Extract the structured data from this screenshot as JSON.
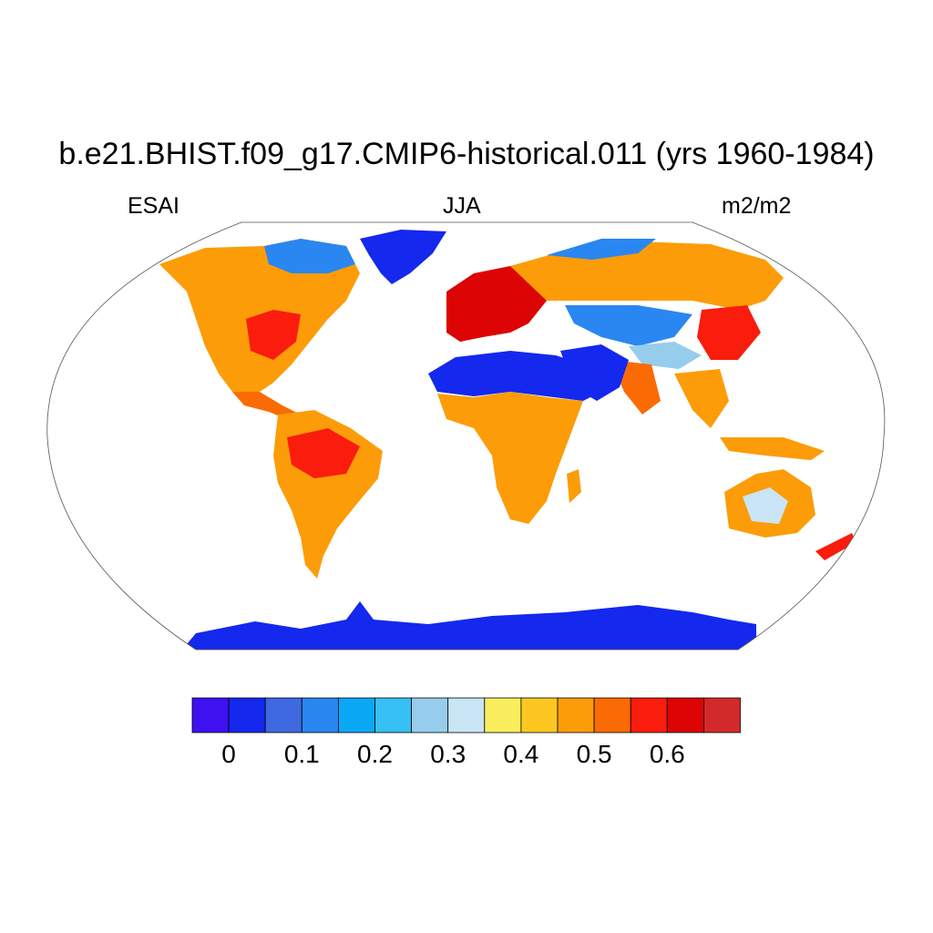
{
  "title": "b.e21.BHIST.f09_g17.CMIP6-historical.011 (yrs 1960-1984)",
  "subtitle_left": "ESAI",
  "subtitle_center": "JJA",
  "subtitle_right": "m2/m2",
  "colorbar": {
    "colors": [
      "#3f10f0",
      "#1428ee",
      "#3f69e0",
      "#2a86f0",
      "#0aa8f5",
      "#36c0f4",
      "#96cdec",
      "#c9e5f6",
      "#fbee5e",
      "#fdc721",
      "#fc9c08",
      "#fb6b05",
      "#fa1c0c",
      "#dc0404",
      "#d22a2a"
    ],
    "tick_labels": [
      "0",
      "0.1",
      "0.2",
      "0.3",
      "0.4",
      "0.5",
      "0.6"
    ]
  },
  "chart_data": {
    "type": "heatmap",
    "projection": "Robinson",
    "variable": "ESAI",
    "season": "JJA",
    "units": "m2/m2",
    "value_range": [
      0,
      0.7
    ],
    "regions": [
      {
        "name": "Antarctica",
        "value": 0.02
      },
      {
        "name": "Greenland",
        "value": 0.02
      },
      {
        "name": "Sahara and Arabia",
        "value": 0.03
      },
      {
        "name": "Canadian Arctic",
        "value": 0.2
      },
      {
        "name": "Tibetan Plateau and Central Asia",
        "value": 0.25
      },
      {
        "name": "Australian interior",
        "value": 0.35
      },
      {
        "name": "North America",
        "value": 0.5
      },
      {
        "name": "Eastern United States",
        "value": 0.6
      },
      {
        "name": "South America",
        "value": 0.5
      },
      {
        "name": "Amazon",
        "value": 0.6
      },
      {
        "name": "Africa south of Sahara",
        "value": 0.5
      },
      {
        "name": "Europe",
        "value": 0.62
      },
      {
        "name": "Russia and Siberia",
        "value": 0.5
      },
      {
        "name": "India and Southeast Asia",
        "value": 0.55
      },
      {
        "name": "East China",
        "value": 0.6
      }
    ]
  }
}
